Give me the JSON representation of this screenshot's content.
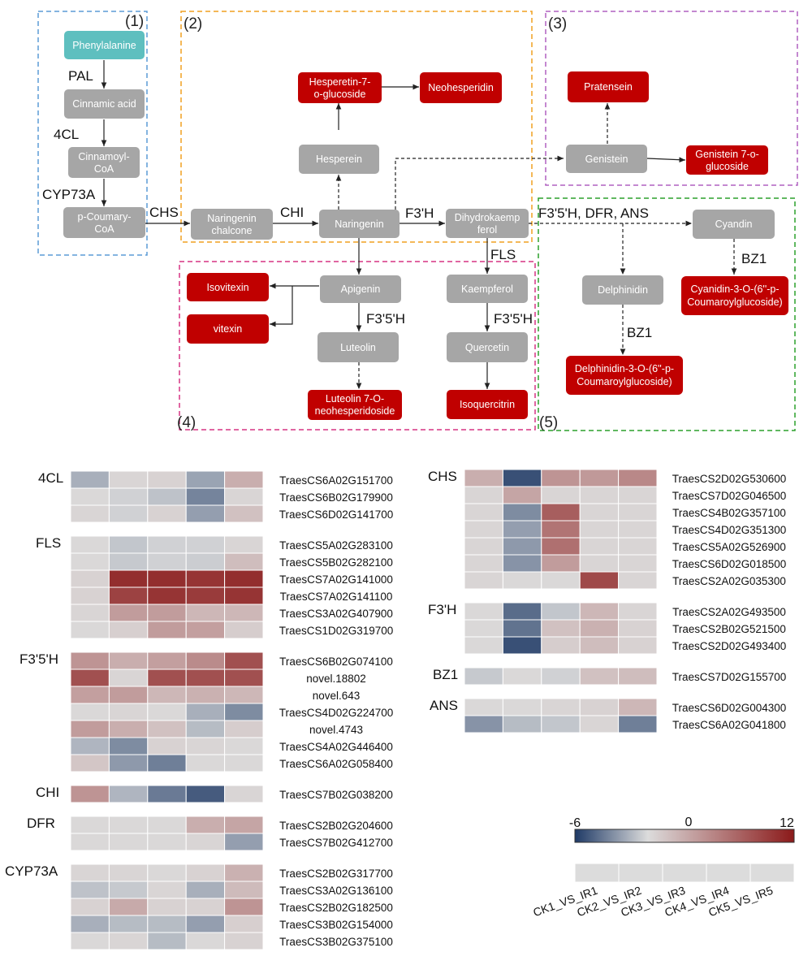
{
  "pathway": {
    "sections": [
      "(1)",
      "(2)",
      "(3)",
      "(4)",
      "(5)"
    ],
    "nodes": {
      "phenylalanine": "Phenylalanine",
      "cinnamic_acid": "Cinnamic acid",
      "cinnamoyl_coa": [
        "Cinnamoyl-",
        "CoA"
      ],
      "p_coumaryl_coa": [
        "p-Coumary-",
        "CoA"
      ],
      "naringenin_chalcone": [
        "Naringenin",
        "chalcone"
      ],
      "naringenin": "Naringenin",
      "hesperein": "Hesperein",
      "hesperetin_glucoside": [
        "Hesperetin-7-",
        "o-glucoside"
      ],
      "neohesperidin": "Neohesperidin",
      "dihydrokaempferol": [
        "Dihydrokaemp",
        "ferol"
      ],
      "genistein": "Genistein",
      "pratensein": "Pratensein",
      "genistein_glucoside": [
        "Genistein 7-o-",
        "glucoside"
      ],
      "apigenin": "Apigenin",
      "isovitexin": "Isovitexin",
      "vitexin": "vitexin",
      "luteolin": "Luteolin",
      "luteolin_glucoside": [
        "Luteolin 7-O-",
        "neohesperidoside"
      ],
      "kaempferol": "Kaempferol",
      "quercetin": "Quercetin",
      "isoquercitrin": "Isoquercitrin",
      "cyandin": "Cyandin",
      "cyanidin_glucoside": [
        "Cyanidin-3-O-(6''-p-",
        "Coumaroylglucoside)"
      ],
      "delphinidin": "Delphinidin",
      "delphinidin_glucoside": [
        "Delphinidin-3-O-(6''-p-",
        "Coumaroylglucoside)"
      ]
    },
    "enzymes": {
      "pal": "PAL",
      "c4l": "4CL",
      "cyp73a": "CYP73A",
      "chs": "CHS",
      "chi": "CHI",
      "f3h": "F3'H",
      "fls": "FLS",
      "f3_5h_a": "F3'5'H",
      "f3_5h_b": "F3'5'H",
      "f3_5h_dfr_ans": "F3'5'H, DFR, ANS",
      "bz1_a": "BZ1",
      "bz1_b": "BZ1"
    }
  },
  "heatmap": {
    "columns": [
      "CK1_VS_IR1",
      "CK2_VS_IR2",
      "CK3_VS_IR3",
      "CK4_VS_IR4",
      "CK5_VS_IR5"
    ],
    "scale": {
      "min": -6,
      "mid": 0,
      "max": 12,
      "min_label": "-6",
      "mid_label": "0",
      "max_label": "12",
      "low_color": "#1f3a66",
      "mid_color": "#dcdcdc",
      "high_color": "#8b1a1a"
    },
    "left_groups": [
      {
        "label": "4CL",
        "genes": [
          {
            "id": "TraesCS6A02G151700",
            "values": [
              -1.2,
              0.2,
              0.3,
              -1.6,
              2.0
            ]
          },
          {
            "id": "TraesCS6B02G179900",
            "values": [
              0.1,
              -0.2,
              -0.6,
              -2.8,
              0.2
            ]
          },
          {
            "id": "TraesCS6D02G141700",
            "values": [
              0.2,
              -0.2,
              0.3,
              -1.8,
              1.0
            ]
          }
        ]
      },
      {
        "label": "FLS",
        "genes": [
          {
            "id": "TraesCS5A02G283100",
            "values": [
              0.1,
              -0.5,
              -0.2,
              -0.2,
              0.2
            ]
          },
          {
            "id": "TraesCS5B02G282100",
            "values": [
              0.1,
              -0.4,
              -0.2,
              -0.3,
              1.2
            ]
          },
          {
            "id": "TraesCS7A02G141000",
            "values": [
              0.3,
              10.5,
              10.5,
              10.0,
              10.5
            ]
          },
          {
            "id": "TraesCS7A02G141100",
            "values": [
              0.3,
              9.0,
              10.0,
              9.5,
              10.0
            ]
          },
          {
            "id": "TraesCS3A02G407900",
            "values": [
              0.2,
              3.0,
              3.0,
              1.5,
              1.5
            ]
          },
          {
            "id": "TraesCS1D02G319700",
            "values": [
              0.1,
              0.4,
              3.0,
              2.8,
              0.5
            ]
          }
        ]
      },
      {
        "label": "F3'5'H",
        "genes": [
          {
            "id": "TraesCS6B02G074100",
            "values": [
              3.5,
              2.0,
              2.8,
              4.0,
              8.0
            ]
          },
          {
            "id": "novel.18802",
            "values": [
              8.0,
              0.2,
              8.0,
              8.0,
              8.0
            ]
          },
          {
            "id": "novel.643",
            "values": [
              2.8,
              3.0,
              1.5,
              1.8,
              1.5
            ]
          },
          {
            "id": "TraesCS4D02G224700",
            "values": [
              0.1,
              0.2,
              0.1,
              -1.2,
              -2.5
            ]
          },
          {
            "id": "novel.4743",
            "values": [
              3.0,
              2.0,
              1.0,
              -0.8,
              0.5
            ]
          },
          {
            "id": "TraesCS4A02G446400",
            "values": [
              -1.0,
              -2.5,
              0.3,
              0.2,
              0.1
            ]
          },
          {
            "id": "TraesCS6A02G058400",
            "values": [
              0.8,
              -2.0,
              -3.0,
              0.1,
              0.1
            ]
          }
        ]
      },
      {
        "label": "CHI",
        "genes": [
          {
            "id": "TraesCS7B02G038200",
            "values": [
              3.5,
              -1.0,
              -3.2,
              -4.5,
              0.2
            ]
          }
        ]
      },
      {
        "label": "DFR",
        "genes": [
          {
            "id": "TraesCS2B02G204600",
            "values": [
              0.1,
              0.1,
              0.1,
              2.0,
              2.5
            ]
          },
          {
            "id": "TraesCS7B02G412700",
            "values": [
              0.1,
              0.1,
              0.1,
              0.2,
              -1.8
            ]
          }
        ]
      },
      {
        "label": "CYP73A",
        "genes": [
          {
            "id": "TraesCS2B02G317700",
            "values": [
              0.2,
              0.2,
              0.1,
              0.3,
              1.8
            ]
          },
          {
            "id": "TraesCS3A02G136100",
            "values": [
              -0.6,
              -0.4,
              0.2,
              -1.2,
              1.3
            ]
          },
          {
            "id": "TraesCS2B02G182500",
            "values": [
              0.3,
              2.2,
              0.3,
              0.3,
              3.5
            ]
          },
          {
            "id": "TraesCS3B02G154000",
            "values": [
              -1.2,
              -0.8,
              -0.8,
              -1.8,
              0.4
            ]
          },
          {
            "id": "TraesCS3B02G375100",
            "values": [
              0.1,
              0.2,
              -0.8,
              0.1,
              0.3
            ]
          }
        ]
      }
    ],
    "right_groups": [
      {
        "label": "CHS",
        "genes": [
          {
            "id": "TraesCS2D02G530600",
            "values": [
              2.0,
              -5.0,
              3.5,
              3.2,
              4.2
            ]
          },
          {
            "id": "TraesCS7D02G046500",
            "values": [
              0.2,
              2.5,
              0.2,
              0.2,
              0.2
            ]
          },
          {
            "id": "TraesCS4B02G357100",
            "values": [
              0.2,
              -2.5,
              7.0,
              0.2,
              0.2
            ]
          },
          {
            "id": "TraesCS4D02G351300",
            "values": [
              0.2,
              -1.8,
              5.5,
              0.2,
              0.2
            ]
          },
          {
            "id": "TraesCS5A02G526900",
            "values": [
              0.2,
              -2.0,
              5.8,
              0.2,
              0.2
            ]
          },
          {
            "id": "TraesCS6D02G018500",
            "values": [
              0.2,
              -2.2,
              3.0,
              0.2,
              0.2
            ]
          },
          {
            "id": "TraesCS2A02G035300",
            "values": [
              0.2,
              0.1,
              0.1,
              8.5,
              0.2
            ]
          }
        ]
      },
      {
        "label": "F3'H",
        "genes": [
          {
            "id": "TraesCS2A02G493500",
            "values": [
              0.1,
              -3.8,
              -0.5,
              1.5,
              0.2
            ]
          },
          {
            "id": "TraesCS2B02G521500",
            "values": [
              0.1,
              -3.5,
              1.0,
              1.8,
              0.3
            ]
          },
          {
            "id": "TraesCS2D02G493400",
            "values": [
              0.1,
              -5.0,
              0.5,
              1.2,
              0.3
            ]
          }
        ]
      },
      {
        "label": "BZ1",
        "genes": [
          {
            "id": "TraesCS7D02G155700",
            "values": [
              -0.4,
              0.1,
              -0.2,
              1.0,
              1.2
            ]
          }
        ]
      },
      {
        "label": "ANS",
        "genes": [
          {
            "id": "TraesCS6D02G004300",
            "values": [
              0.1,
              0.1,
              0.2,
              0.3,
              1.5
            ]
          },
          {
            "id": "TraesCS6A02G041800",
            "values": [
              -2.2,
              -0.8,
              -0.5,
              0.2,
              -3.0
            ]
          }
        ]
      }
    ]
  }
}
